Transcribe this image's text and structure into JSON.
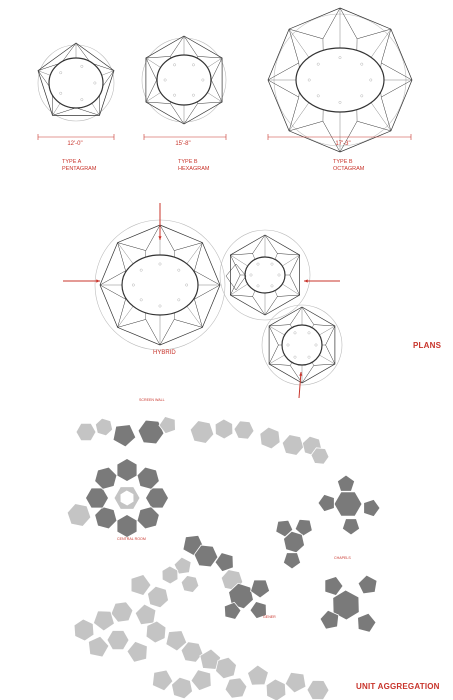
{
  "plans": {
    "title": "PLANS",
    "units": [
      {
        "dimension": "12'-0\"",
        "type_line": "TYPE A",
        "name_line": "PENTAGRAM"
      },
      {
        "dimension": "15'-8\"",
        "type_line": "TYPE B",
        "name_line": "HEXAGRAM"
      },
      {
        "dimension": "17'-3\"",
        "type_line": "TYPE B",
        "name_line": "OCTAGRAM"
      }
    ],
    "hybrid_label": "HYBRID"
  },
  "aggregation": {
    "title": "UNIT AGGREGATION",
    "labels": {
      "top": "SCREEN WALL",
      "ring": "CENTRAL ROOM",
      "chapel": "CHAPELS",
      "gener": "GENER"
    }
  },
  "colors": {
    "accent": "#c8342b",
    "line": "#333333",
    "guide": "#bbbbbb",
    "dark_unit": "#7a7a7a",
    "light_unit": "#c4c4c4"
  }
}
